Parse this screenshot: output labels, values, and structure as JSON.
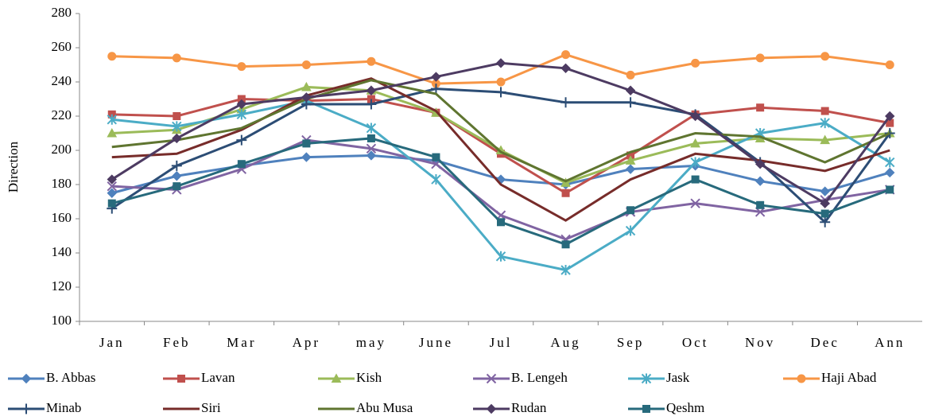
{
  "chart_data": {
    "type": "line",
    "y_label": "Direction",
    "categories": [
      "Jan",
      "Feb",
      "Mar",
      "Apr",
      "may",
      "June",
      "Jul",
      "Aug",
      "Sep",
      "Oct",
      "Nov",
      "Dec",
      "Ann"
    ],
    "ylim": [
      100,
      280
    ],
    "yticks": [
      100,
      120,
      140,
      160,
      180,
      200,
      220,
      240,
      260,
      280
    ],
    "series": [
      {
        "name": "B. Abbas",
        "color": "#4f81bd",
        "marker": "diamond",
        "values": [
          175,
          185,
          191,
          196,
          197,
          194,
          183,
          180,
          189,
          191,
          182,
          176,
          187
        ]
      },
      {
        "name": "Lavan",
        "color": "#c0504d",
        "marker": "square",
        "values": [
          221,
          220,
          230,
          229,
          230,
          222,
          198,
          175,
          197,
          221,
          225,
          223,
          216
        ]
      },
      {
        "name": "Kish",
        "color": "#9bbb59",
        "marker": "triangle",
        "values": [
          210,
          212,
          224,
          237,
          235,
          222,
          200,
          181,
          194,
          204,
          207,
          206,
          210
        ]
      },
      {
        "name": "B. Lengeh",
        "color": "#8064a2",
        "marker": "x",
        "values": [
          179,
          177,
          189,
          206,
          201,
          192,
          162,
          148,
          164,
          169,
          164,
          171,
          177
        ]
      },
      {
        "name": "Jask",
        "color": "#4bacc6",
        "marker": "star",
        "values": [
          218,
          214,
          221,
          229,
          213,
          183,
          138,
          130,
          153,
          193,
          210,
          216,
          193
        ]
      },
      {
        "name": "Haji Abad",
        "color": "#f79646",
        "marker": "circle",
        "values": [
          255,
          254,
          249,
          250,
          252,
          239,
          240,
          256,
          244,
          251,
          254,
          255,
          250
        ]
      },
      {
        "name": "Minab",
        "color": "#2c4d75",
        "marker": "plus",
        "values": [
          166,
          191,
          206,
          227,
          227,
          236,
          234,
          228,
          228,
          221,
          193,
          158,
          210
        ]
      },
      {
        "name": "Siri",
        "color": "#772c2a",
        "marker": "none",
        "values": [
          196,
          198,
          212,
          232,
          242,
          223,
          180,
          159,
          183,
          198,
          194,
          188,
          200
        ]
      },
      {
        "name": "Abu Musa",
        "color": "#5f7530",
        "marker": "none",
        "values": [
          202,
          206,
          213,
          230,
          241,
          233,
          199,
          182,
          199,
          210,
          208,
          193,
          210
        ]
      },
      {
        "name": "Rudan",
        "color": "#4d3b62",
        "marker": "diamond",
        "values": [
          183,
          207,
          227,
          231,
          235,
          243,
          251,
          248,
          235,
          220,
          192,
          169,
          220
        ]
      },
      {
        "name": "Qeshm",
        "color": "#276a7c",
        "marker": "square",
        "values": [
          169,
          179,
          192,
          204,
          207,
          196,
          158,
          145,
          165,
          183,
          168,
          163,
          177
        ]
      }
    ]
  }
}
